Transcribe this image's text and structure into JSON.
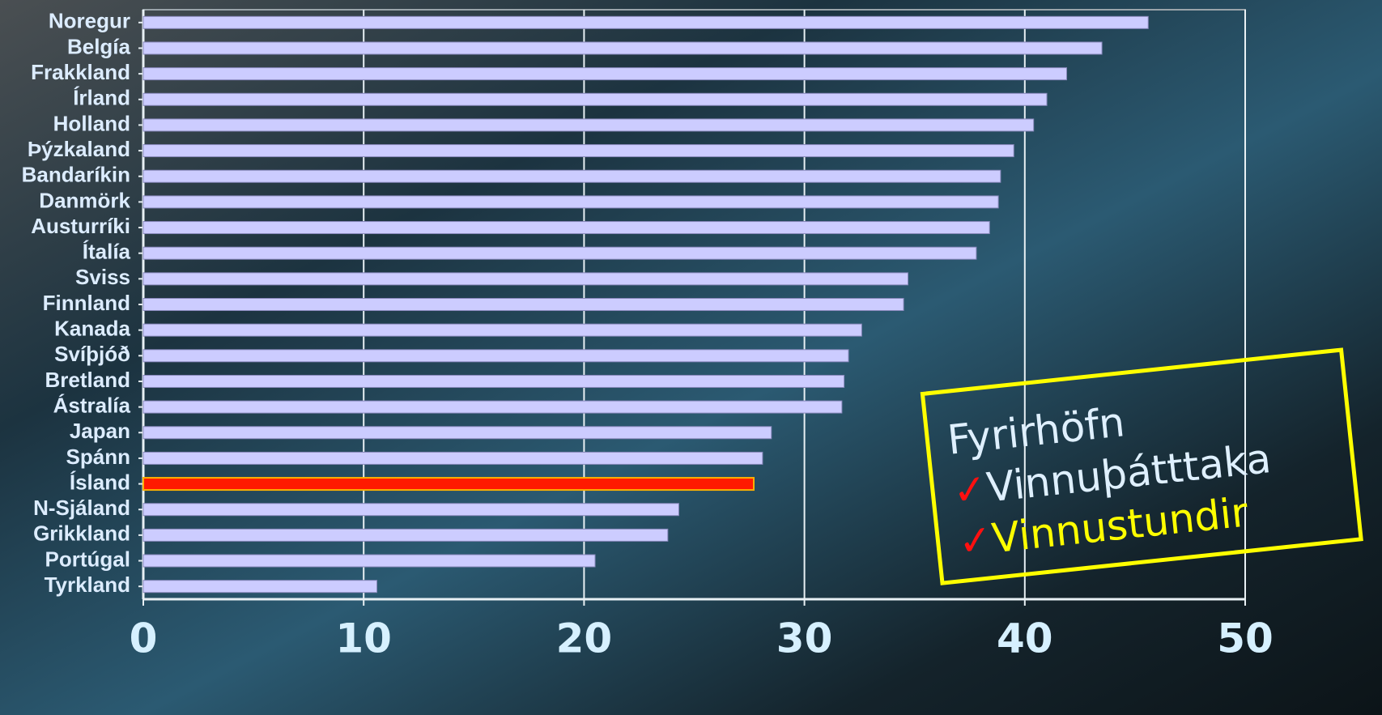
{
  "chart_data": {
    "type": "bar",
    "orientation": "horizontal",
    "categories": [
      "Noregur",
      "Belgía",
      "Frakkland",
      "Írland",
      "Holland",
      "Þýzkaland",
      "Bandaríkin",
      "Danmörk",
      "Austurríki",
      "Ítalía",
      "Sviss",
      "Finnland",
      "Kanada",
      "Svíþjóð",
      "Bretland",
      "Ástralía",
      "Japan",
      "Spánn",
      "Ísland",
      "N-Sjáland",
      "Grikkland",
      "Portúgal",
      "Tyrkland"
    ],
    "values": [
      45.6,
      43.5,
      41.9,
      41.0,
      40.4,
      39.5,
      38.9,
      38.8,
      38.4,
      37.8,
      34.7,
      34.5,
      32.6,
      32.0,
      31.8,
      31.7,
      28.5,
      28.1,
      27.7,
      24.3,
      23.8,
      20.5,
      10.6
    ],
    "colors": [
      "#ccccff",
      "#ccccff",
      "#ccccff",
      "#ccccff",
      "#ccccff",
      "#ccccff",
      "#ccccff",
      "#ccccff",
      "#ccccff",
      "#ccccff",
      "#ccccff",
      "#ccccff",
      "#ccccff",
      "#ccccff",
      "#ccccff",
      "#ccccff",
      "#ccccff",
      "#ccccff",
      "#ff1a00",
      "#ccccff",
      "#ccccff",
      "#ccccff",
      "#ccccff"
    ],
    "xlim": [
      0,
      50
    ],
    "xticks": [
      0,
      10,
      20,
      30,
      40,
      50
    ],
    "grid": true,
    "annotation": {
      "title": "Fyrirhöfn",
      "items": [
        {
          "mark": "✓",
          "text": "Vinnuþátttaka"
        },
        {
          "mark": "✓",
          "text": "Vinnustundir"
        }
      ]
    }
  }
}
